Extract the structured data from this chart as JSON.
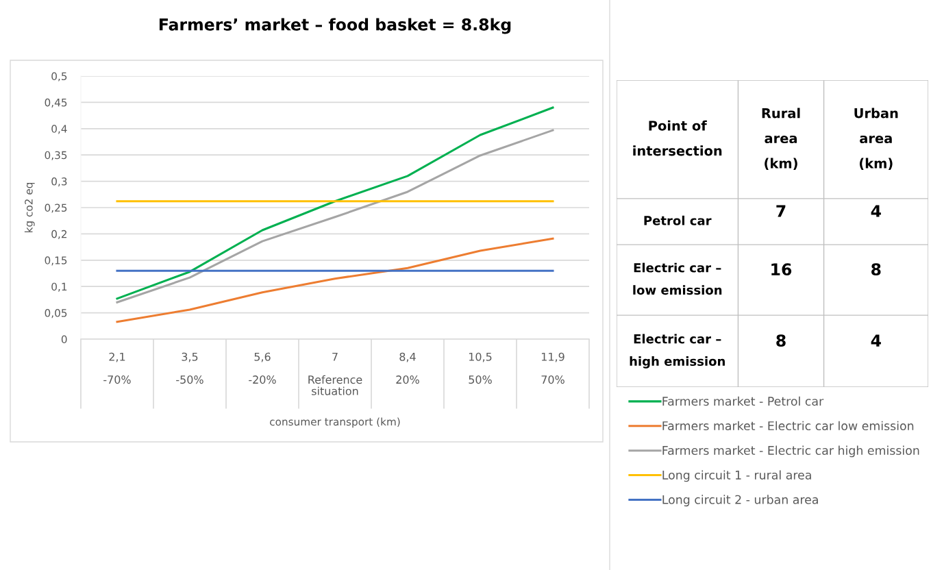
{
  "chart_data": [
    {
      "type": "line",
      "title": "Farmers’ market – food basket = 8.8kg",
      "xlabel": "consumer transport (km)",
      "ylabel": "kg co2 eq",
      "categories": [
        "2,1\n\n-70%",
        "3,5\n\n-50%",
        "5,6\n\n-20%",
        "7\n\nReference\nsituation",
        "8,4\n\n20%",
        "10,5\n\n50%",
        "11,9\n\n70%"
      ],
      "series": [
        {
          "name": "Farmers market - Petrol car",
          "color": "#00b050",
          "values": [
            0.077,
            0.128,
            0.207,
            0.262,
            0.31,
            0.388,
            0.44
          ]
        },
        {
          "name": "Farmers market - Electric car low emission",
          "color": "#ed7d31",
          "values": [
            0.033,
            0.056,
            0.089,
            0.115,
            0.135,
            0.168,
            0.191
          ]
        },
        {
          "name": "Farmers market - Electric car high emission",
          "color": "#a5a5a5",
          "values": [
            0.07,
            0.117,
            0.186,
            0.232,
            0.28,
            0.349,
            0.397
          ]
        },
        {
          "name": "Long circuit 1 - rural area",
          "color": "#ffc000",
          "values": [
            0.262,
            0.262,
            0.262,
            0.262,
            0.262,
            0.262,
            0.262
          ]
        },
        {
          "name": "Long circuit 2 - urban area",
          "color": "#4472c4",
          "values": [
            0.13,
            0.13,
            0.13,
            0.13,
            0.13,
            0.13,
            0.13
          ]
        }
      ],
      "ylim": [
        0,
        0.5
      ],
      "yticks": [
        {
          "value": 0,
          "label": "0"
        },
        {
          "value": 0.05,
          "label": "0,05"
        },
        {
          "value": 0.1,
          "label": "0,1"
        },
        {
          "value": 0.15,
          "label": "0,15"
        },
        {
          "value": 0.2,
          "label": "0,2"
        },
        {
          "value": 0.25,
          "label": "0,25"
        },
        {
          "value": 0.3,
          "label": "0,3"
        },
        {
          "value": 0.35,
          "label": "0,35"
        },
        {
          "value": 0.4,
          "label": "0,4"
        },
        {
          "value": 0.45,
          "label": "0,45"
        },
        {
          "value": 0.5,
          "label": "0,5"
        }
      ],
      "grid": "y",
      "legend": "right",
      "marker": "none",
      "line_style": "solid"
    },
    {
      "type": "other",
      "annotations": [
        "Point of\nintersection",
        "Rural\narea\n(km)",
        "Urban\narea\n(km)",
        "Petrol car",
        "7",
        "4",
        "Electric car –\nlow emission",
        "16",
        "8",
        "Electric car –\nhigh emission",
        "8",
        "4"
      ]
    }
  ]
}
